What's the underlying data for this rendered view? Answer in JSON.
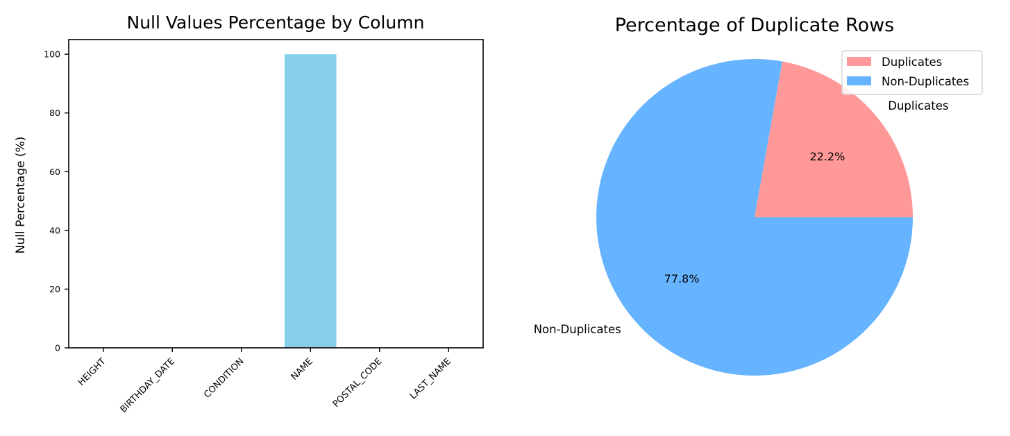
{
  "chart_data": [
    {
      "type": "bar",
      "title": "Null Values Percentage by Column",
      "xlabel": "",
      "ylabel": "Null Percentage (%)",
      "categories": [
        "HEIGHT",
        "BIRTHDAY_DATE",
        "CONDITION",
        "NAME",
        "POSTAL_CODE",
        "LAST_NAME"
      ],
      "values": [
        0,
        0,
        0,
        100,
        0,
        0
      ],
      "ylim": [
        0,
        105
      ],
      "yticks": [
        0,
        20,
        40,
        60,
        80,
        100
      ],
      "grid": false,
      "bar_color": "#87ceeb"
    },
    {
      "type": "pie",
      "title": "Percentage of Duplicate Rows",
      "labels": [
        "Duplicates",
        "Non-Duplicates"
      ],
      "values": [
        22.2,
        77.8
      ],
      "pct_labels": [
        "22.2%",
        "77.8%"
      ],
      "colors": [
        "#ff9999",
        "#66b3ff"
      ],
      "legend": [
        "Duplicates",
        "Non-Duplicates"
      ],
      "legend_position": "top-right"
    }
  ]
}
